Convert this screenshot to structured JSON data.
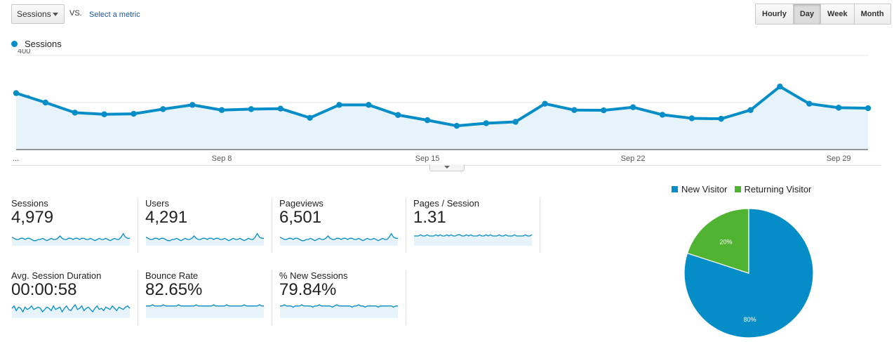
{
  "controls": {
    "metric_select": "Sessions",
    "vs_label": "VS.",
    "select_metric_link": "Select a metric",
    "periods": [
      "Hourly",
      "Day",
      "Week",
      "Month"
    ],
    "active_period": "Day"
  },
  "chart_data": [
    {
      "type": "line",
      "legend": "Sessions",
      "color": "#058dc7",
      "y_ticks": [
        "400",
        "200"
      ],
      "ylim": [
        0,
        400
      ],
      "x_labels": [
        {
          "label": "...",
          "index": 0
        },
        {
          "label": "Sep 8",
          "index": 7
        },
        {
          "label": "Sep 15",
          "index": 14
        },
        {
          "label": "Sep 22",
          "index": 21
        },
        {
          "label": "Sep 29",
          "index": 28
        }
      ],
      "values": [
        240,
        200,
        157,
        150,
        152,
        172,
        190,
        168,
        172,
        174,
        135,
        190,
        190,
        147,
        125,
        101,
        112,
        118,
        195,
        168,
        167,
        180,
        148,
        133,
        131,
        168,
        268,
        195,
        178,
        176
      ],
      "grid": true
    },
    {
      "type": "pie",
      "series": [
        {
          "name": "New Visitor",
          "value": 80,
          "label": "80%",
          "color": "#058dc7"
        },
        {
          "name": "Returning Visitor",
          "value": 20,
          "label": "20%",
          "color": "#50b432"
        }
      ],
      "legend_position": "top"
    }
  ],
  "metrics": [
    {
      "label": "Sessions",
      "value": "4,979",
      "spark": [
        5,
        4,
        3,
        3,
        4,
        4,
        3,
        4,
        4,
        3,
        2,
        2,
        3,
        3,
        4,
        3,
        2,
        3,
        4,
        3,
        3,
        4,
        6,
        4,
        3,
        3,
        4,
        4,
        3,
        4,
        4,
        3,
        4,
        4,
        3,
        3,
        4,
        3,
        2,
        3,
        4,
        3,
        3,
        4,
        3,
        2,
        3,
        4,
        3,
        3,
        5,
        8,
        5,
        4,
        4
      ]
    },
    {
      "label": "Users",
      "value": "4,291",
      "spark": [
        5,
        4,
        3,
        3,
        4,
        4,
        3,
        4,
        4,
        3,
        2,
        2,
        3,
        3,
        4,
        3,
        2,
        3,
        4,
        3,
        3,
        4,
        6,
        4,
        3,
        3,
        4,
        4,
        3,
        4,
        4,
        3,
        4,
        4,
        3,
        3,
        4,
        3,
        2,
        3,
        4,
        3,
        3,
        4,
        3,
        2,
        3,
        4,
        3,
        3,
        5,
        8,
        5,
        4,
        4
      ]
    },
    {
      "label": "Pageviews",
      "value": "6,501",
      "spark": [
        5,
        4,
        3,
        3,
        4,
        4,
        3,
        4,
        4,
        3,
        2,
        2,
        3,
        3,
        4,
        3,
        2,
        3,
        4,
        3,
        3,
        4,
        6,
        4,
        3,
        3,
        4,
        4,
        3,
        4,
        4,
        3,
        4,
        4,
        3,
        3,
        4,
        3,
        2,
        3,
        4,
        3,
        3,
        4,
        3,
        2,
        3,
        4,
        3,
        3,
        5,
        8,
        5,
        4,
        4
      ]
    },
    {
      "label": "Pages / Session",
      "value": "1.31",
      "spark": [
        6,
        6,
        6,
        7,
        6,
        6,
        7,
        6,
        6,
        6,
        7,
        6,
        7,
        6,
        6,
        7,
        6,
        7,
        6,
        6,
        7,
        7,
        6,
        6,
        7,
        6,
        7,
        6,
        6,
        6,
        7,
        6,
        6,
        7,
        6,
        7,
        6,
        6,
        6,
        7,
        6,
        6,
        7,
        6,
        6,
        6,
        7,
        6,
        6,
        6,
        6,
        7,
        6,
        6,
        7
      ]
    },
    {
      "label": "Avg. Session Duration",
      "value": "00:00:58",
      "spark": [
        6,
        8,
        4,
        7,
        6,
        3,
        7,
        5,
        6,
        8,
        5,
        6,
        7,
        6,
        3,
        5,
        7,
        6,
        4,
        8,
        5,
        6,
        7,
        3,
        6,
        8,
        5,
        4,
        7,
        9,
        5,
        6,
        8,
        4,
        6,
        7,
        5,
        3,
        6,
        8,
        5,
        6,
        4,
        7,
        6,
        5,
        8,
        6,
        4,
        7,
        6,
        5,
        7,
        8,
        6
      ]
    },
    {
      "label": "Bounce Rate",
      "value": "82.65%",
      "spark": [
        8,
        8,
        8,
        9,
        8,
        8,
        8,
        8,
        9,
        8,
        8,
        8,
        8,
        8,
        8,
        9,
        8,
        8,
        8,
        8,
        8,
        8,
        8,
        9,
        8,
        8,
        8,
        8,
        8,
        8,
        8,
        9,
        8,
        8,
        8,
        8,
        8,
        9,
        8,
        8,
        8,
        8,
        8,
        8,
        8,
        9,
        8,
        8,
        8,
        8,
        8,
        8,
        9,
        8,
        8
      ]
    },
    {
      "label": "% New Sessions",
      "value": "79.84%",
      "spark": [
        8,
        8,
        9,
        8,
        8,
        8,
        7,
        8,
        8,
        8,
        9,
        8,
        8,
        8,
        8,
        7,
        8,
        8,
        9,
        8,
        8,
        8,
        8,
        8,
        7,
        8,
        9,
        8,
        8,
        8,
        8,
        8,
        8,
        7,
        8,
        8,
        9,
        8,
        8,
        7,
        8,
        8,
        8,
        8,
        8,
        7,
        8,
        8,
        8,
        8,
        8,
        8,
        7,
        8,
        8
      ]
    }
  ]
}
